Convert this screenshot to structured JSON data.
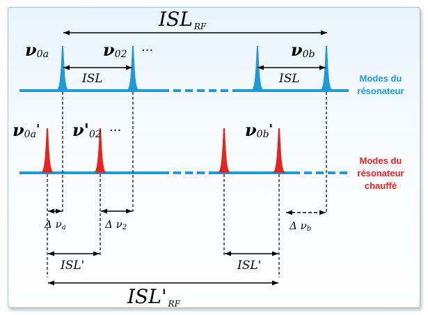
{
  "diagram": {
    "isl_rf": {
      "main": "ISL",
      "sub": "RF"
    },
    "isl_rf_prime": {
      "main": "ISL'",
      "sub": "RF"
    },
    "isl": "ISL",
    "isl_prime": "ISL'",
    "ellipsis": "···",
    "nu0a": {
      "sym": "ν",
      "sub": "0a"
    },
    "nu02": {
      "sym": "ν",
      "sub": "02"
    },
    "nu0b": {
      "sym": "ν",
      "sub": "0b"
    },
    "nu0a_prime": {
      "sym": "ν",
      "sub": "0a",
      "prime": "'"
    },
    "nu02_prime": {
      "sym": "ν'",
      "sub": "02"
    },
    "nu0b_prime": {
      "sym": "ν",
      "sub": "0b",
      "prime": "'"
    },
    "delta_nu_a": {
      "main": "Δ ν",
      "sub": "a"
    },
    "delta_nu_2": {
      "main": "Δ ν",
      "sub": "2"
    },
    "delta_nu_b": {
      "main": "Δ ν",
      "sub": "b"
    },
    "resonator_modes": [
      "Modes du",
      "résonateur"
    ],
    "heated_resonator_modes": [
      "Modes du",
      "résonateur",
      "chauffé"
    ],
    "colors": {
      "blue": "#1f9ad9",
      "red": "#e8231c",
      "arrow": "#000000"
    }
  }
}
